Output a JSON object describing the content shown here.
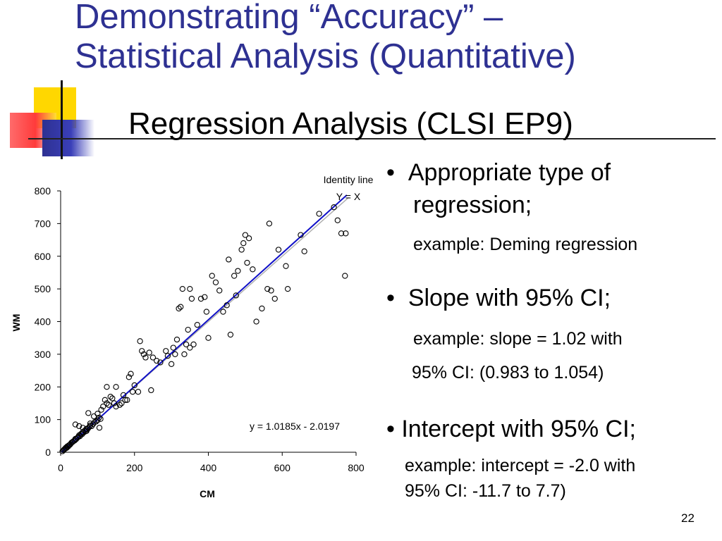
{
  "slide": {
    "title_line1": "Demonstrating “Accuracy” –",
    "title_line2": "Statistical Analysis (Quantitative)",
    "subtitle": "Regression Analysis (CLSI EP9)",
    "page_number": "22"
  },
  "bullets": [
    {
      "glyph": "•",
      "text_line1": "Appropriate type of",
      "text_line2": "regression;",
      "examples": [
        "example: Deming regression"
      ]
    },
    {
      "glyph": "•",
      "text_line1": "Slope with 95% CI;",
      "examples": [
        "example: slope = 1.02 with",
        "95% CI: (0.983 to 1.054)"
      ]
    },
    {
      "glyph": "•",
      "text_line1": "Intercept with 95% CI;",
      "examples": [
        "example: intercept = -2.0 with",
        "95% CI: -11.7 to 7.7)"
      ]
    }
  ],
  "chart_data": {
    "type": "scatter",
    "title": "",
    "xlabel": "CM",
    "ylabel": "WM",
    "xlim": [
      0,
      800
    ],
    "ylim": [
      0,
      800
    ],
    "xticks": [
      0,
      200,
      400,
      600,
      800
    ],
    "yticks": [
      0,
      100,
      200,
      300,
      400,
      500,
      600,
      700,
      800
    ],
    "grid": false,
    "identity_line_label_1": "Identity line",
    "identity_line_label_2": "Y = X",
    "regression_equation": "y = 1.0185x - 2.0197",
    "regression": {
      "slope": 1.0185,
      "intercept": -2.0197,
      "x_range": [
        0,
        775
      ]
    },
    "identity": {
      "x_range": [
        0,
        780
      ]
    },
    "colors": {
      "regression_line": "#1010c8",
      "identity_line": "#b0b0b0",
      "points": "#000000"
    },
    "points": [
      [
        5,
        3
      ],
      [
        8,
        6
      ],
      [
        10,
        9
      ],
      [
        12,
        11
      ],
      [
        14,
        14
      ],
      [
        16,
        13
      ],
      [
        18,
        18
      ],
      [
        20,
        17
      ],
      [
        22,
        21
      ],
      [
        24,
        22
      ],
      [
        26,
        24
      ],
      [
        28,
        27
      ],
      [
        30,
        30
      ],
      [
        32,
        31
      ],
      [
        35,
        34
      ],
      [
        38,
        36
      ],
      [
        40,
        41
      ],
      [
        42,
        40
      ],
      [
        45,
        44
      ],
      [
        48,
        47
      ],
      [
        50,
        52
      ],
      [
        52,
        49
      ],
      [
        55,
        56
      ],
      [
        58,
        55
      ],
      [
        60,
        62
      ],
      [
        62,
        60
      ],
      [
        65,
        66
      ],
      [
        68,
        64
      ],
      [
        70,
        72
      ],
      [
        72,
        70
      ],
      [
        75,
        74
      ],
      [
        78,
        78
      ],
      [
        80,
        82
      ],
      [
        84,
        80
      ],
      [
        88,
        86
      ],
      [
        92,
        92
      ],
      [
        96,
        94
      ],
      [
        100,
        98
      ],
      [
        104,
        106
      ],
      [
        108,
        102
      ],
      [
        40,
        85
      ],
      [
        50,
        80
      ],
      [
        60,
        75
      ],
      [
        70,
        65
      ],
      [
        75,
        120
      ],
      [
        80,
        88
      ],
      [
        90,
        110
      ],
      [
        100,
        118
      ],
      [
        105,
        75
      ],
      [
        110,
        130
      ],
      [
        115,
        140
      ],
      [
        120,
        160
      ],
      [
        125,
        150
      ],
      [
        130,
        145
      ],
      [
        135,
        170
      ],
      [
        140,
        165
      ],
      [
        145,
        150
      ],
      [
        150,
        140
      ],
      [
        160,
        145
      ],
      [
        165,
        150
      ],
      [
        125,
        200
      ],
      [
        150,
        200
      ],
      [
        170,
        175
      ],
      [
        175,
        160
      ],
      [
        180,
        160
      ],
      [
        185,
        230
      ],
      [
        190,
        240
      ],
      [
        195,
        185
      ],
      [
        200,
        205
      ],
      [
        210,
        185
      ],
      [
        215,
        340
      ],
      [
        220,
        310
      ],
      [
        225,
        300
      ],
      [
        230,
        290
      ],
      [
        240,
        305
      ],
      [
        245,
        190
      ],
      [
        250,
        290
      ],
      [
        260,
        280
      ],
      [
        270,
        275
      ],
      [
        285,
        310
      ],
      [
        290,
        295
      ],
      [
        300,
        270
      ],
      [
        305,
        320
      ],
      [
        310,
        300
      ],
      [
        315,
        345
      ],
      [
        320,
        440
      ],
      [
        325,
        445
      ],
      [
        330,
        500
      ],
      [
        335,
        300
      ],
      [
        340,
        330
      ],
      [
        345,
        375
      ],
      [
        350,
        320
      ],
      [
        355,
        470
      ],
      [
        350,
        500
      ],
      [
        360,
        330
      ],
      [
        370,
        390
      ],
      [
        380,
        470
      ],
      [
        390,
        475
      ],
      [
        395,
        430
      ],
      [
        400,
        350
      ],
      [
        410,
        540
      ],
      [
        420,
        520
      ],
      [
        430,
        495
      ],
      [
        440,
        430
      ],
      [
        450,
        450
      ],
      [
        455,
        590
      ],
      [
        460,
        360
      ],
      [
        470,
        540
      ],
      [
        475,
        480
      ],
      [
        480,
        555
      ],
      [
        490,
        620
      ],
      [
        495,
        640
      ],
      [
        500,
        665
      ],
      [
        505,
        580
      ],
      [
        510,
        655
      ],
      [
        520,
        560
      ],
      [
        530,
        400
      ],
      [
        545,
        440
      ],
      [
        560,
        500
      ],
      [
        565,
        700
      ],
      [
        570,
        495
      ],
      [
        580,
        470
      ],
      [
        590,
        620
      ],
      [
        610,
        570
      ],
      [
        615,
        500
      ],
      [
        650,
        665
      ],
      [
        660,
        615
      ],
      [
        700,
        730
      ],
      [
        740,
        750
      ],
      [
        750,
        710
      ],
      [
        760,
        670
      ],
      [
        770,
        540
      ],
      [
        772,
        670
      ]
    ]
  }
}
